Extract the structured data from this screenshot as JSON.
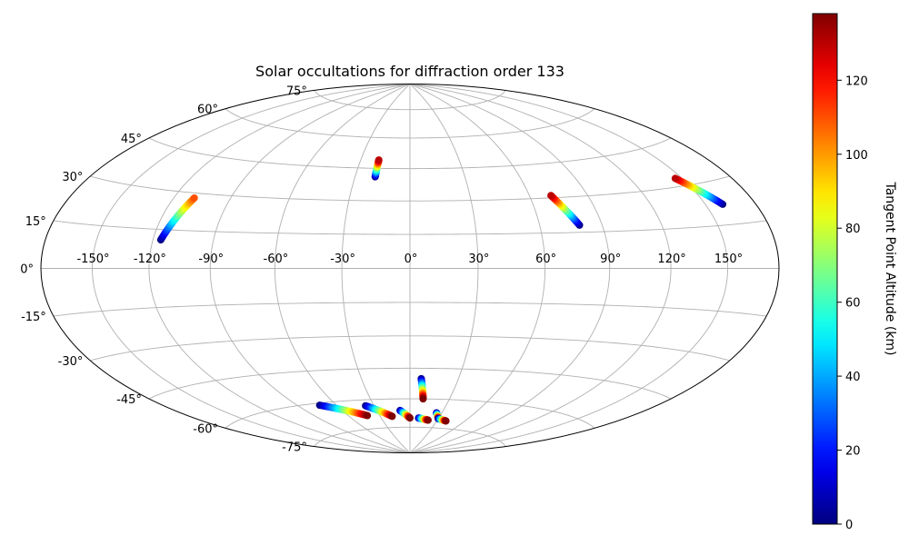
{
  "chart_data": {
    "type": "scatter",
    "projection": "hammer",
    "title": "Solar occultations for diffraction order 133",
    "colorbar": {
      "label": "Tangent Point Altitude (km)",
      "ticks": [
        "0",
        "20",
        "40",
        "60",
        "80",
        "100",
        "120"
      ],
      "range": [
        0,
        138
      ],
      "colormap": "jet"
    },
    "longitude_ticks": [
      "-150°",
      "-120°",
      "-90°",
      "-60°",
      "-30°",
      "0°",
      "30°",
      "60°",
      "90°",
      "120°",
      "150°"
    ],
    "latitude_ticks": [
      "-75°",
      "-60°",
      "-45°",
      "-30°",
      "-15°",
      "0°",
      "15°",
      "30°",
      "45°",
      "60°",
      "75°"
    ],
    "grid": true,
    "tracks": [
      {
        "lon_range": [
          -116,
          -109
        ],
        "lat_range": [
          11,
          28
        ],
        "alt_range": [
          0,
          110
        ]
      },
      {
        "lon_range": [
          -19,
          -19
        ],
        "lat_range": [
          41,
          49
        ],
        "alt_range": [
          0,
          130
        ]
      },
      {
        "lon_range": [
          79,
          71
        ],
        "lat_range": [
          18,
          31
        ],
        "alt_range": [
          0,
          130
        ]
      },
      {
        "lon_range": [
          160,
          146
        ],
        "lat_range": [
          22,
          33
        ],
        "alt_range": [
          0,
          130
        ]
      },
      {
        "lon_range": [
          -73,
          -42
        ],
        "lat_range": [
          -61,
          -68
        ],
        "alt_range": [
          0,
          138
        ]
      },
      {
        "lon_range": [
          -37,
          -18
        ],
        "lat_range": [
          -63,
          -69
        ],
        "alt_range": [
          0,
          138
        ]
      },
      {
        "lon_range": [
          -9,
          0
        ],
        "lat_range": [
          -66,
          -70
        ],
        "alt_range": [
          0,
          138
        ]
      },
      {
        "lon_range": [
          7,
          10
        ],
        "lat_range": [
          -50,
          -60
        ],
        "alt_range": [
          0,
          138
        ]
      },
      {
        "lon_range": [
          9,
          20
        ],
        "lat_range": [
          -70,
          -71
        ],
        "alt_range": [
          0,
          138
        ]
      },
      {
        "lon_range": [
          25,
          30
        ],
        "lat_range": [
          -67,
          -70
        ],
        "alt_range": [
          0,
          138
        ]
      },
      {
        "lon_range": [
          30,
          40
        ],
        "lat_range": [
          -70,
          -71
        ],
        "alt_range": [
          0,
          138
        ]
      }
    ]
  }
}
